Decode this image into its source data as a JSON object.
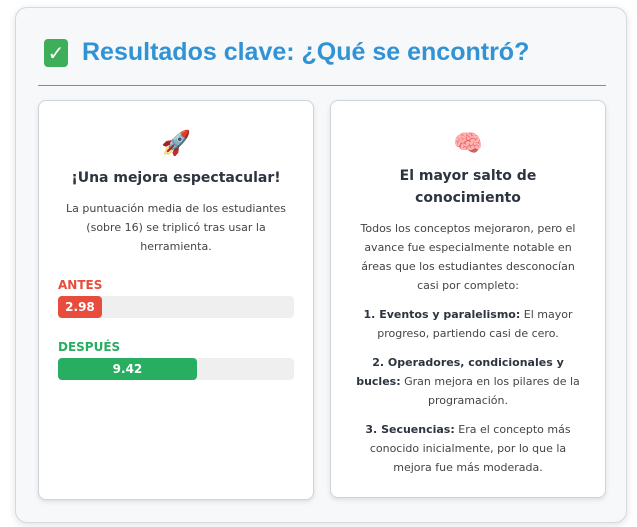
{
  "header": {
    "icon": "check-mark-icon",
    "title": "Resultados clave: ¿Qué se encontró?"
  },
  "colors": {
    "title": "#3193d4",
    "rule": "#3bb86a",
    "before": "#e74c3c",
    "after": "#27ae60"
  },
  "card_left": {
    "icon": "rocket-icon",
    "emoji": "🚀",
    "title": "¡Una mejora espectacular!",
    "text": "La puntuación media de los estudiantes (sobre 16) se triplicó tras usar la herramienta.",
    "max": 16,
    "before": {
      "label": "ANTES",
      "value": 2.98,
      "display": "2.98"
    },
    "after": {
      "label": "DESPUÉS",
      "value": 9.42,
      "display": "9.42"
    }
  },
  "card_right": {
    "icon": "brain-icon",
    "emoji": "🧠",
    "title": "El mayor salto de conocimiento",
    "intro": "Todos los conceptos mejoraron, pero el avance fue especialmente notable en áreas que los estudiantes desconocían casi por completo:",
    "items": [
      {
        "bold": "1. Eventos y paralelismo:",
        "text": " El mayor progreso, partiendo casi de cero."
      },
      {
        "bold": "2. Operadores, condicionales y bucles:",
        "text": " Gran mejora en los pilares de la programación."
      },
      {
        "bold": "3. Secuencias:",
        "text": " Era el concepto más conocido inicialmente, por lo que la mejora fue más moderada."
      }
    ]
  }
}
